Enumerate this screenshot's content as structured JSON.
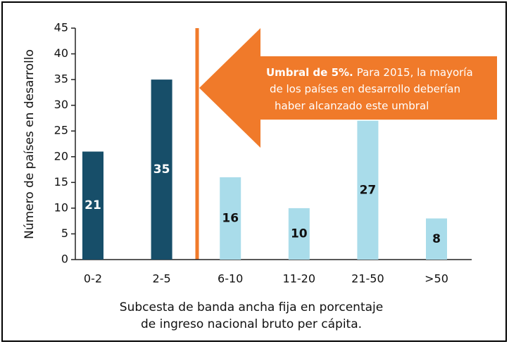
{
  "chart_data": {
    "type": "bar",
    "ylabel": "Número de países en desarrollo",
    "xlabel": [
      "Subcesta de banda ancha fija en porcentaje",
      "de ingreso nacional bruto per cápita."
    ],
    "categories": [
      "0-2",
      "2-5",
      "6-10",
      "11-20",
      "21-50",
      ">50"
    ],
    "values": [
      21,
      35,
      16,
      10,
      27,
      8
    ],
    "colors": [
      "#174e69",
      "#174e69",
      "#a9dcea",
      "#a9dcea",
      "#a9dcea",
      "#a9dcea"
    ],
    "label_colors": [
      "#ffffff",
      "#ffffff",
      "#111111",
      "#111111",
      "#111111",
      "#111111"
    ],
    "ylim": [
      0,
      45
    ],
    "yticks": [
      0,
      5,
      10,
      15,
      20,
      25,
      30,
      35,
      40,
      45
    ],
    "annotation": {
      "bold": "Umbral de 5%.",
      "lines": [
        "Para 2015, la mayoría",
        "de los países en desarrollo deberían",
        "haber alcanzado este umbral"
      ]
    }
  }
}
